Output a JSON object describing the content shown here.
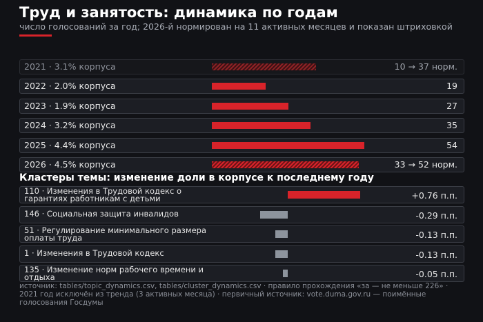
{
  "header": {
    "title": "Труд и занятость: динамика по годам",
    "subtitle": "число голосований за год; 2026-й нормирован на 11 активных месяцев и показан штриховкой"
  },
  "colors": {
    "background": "#111216",
    "accent": "#d8232a",
    "negative_bar": "#8d949d"
  },
  "chart_data": [
    {
      "type": "bar",
      "orientation": "horizontal",
      "title": "Труд и занятость: динамика по годам",
      "categories": [
        "2021",
        "2022",
        "2023",
        "2024",
        "2025",
        "2026"
      ],
      "row_labels": [
        "2021 · 3.1% корпуса",
        "2022 · 2.0% корпуса",
        "2023 · 1.9% корпуса",
        "2024 · 3.2% корпуса",
        "2025 · 4.4% корпуса",
        "2026 · 4.5% корпуса"
      ],
      "values": [
        37,
        19,
        27,
        35,
        54,
        52
      ],
      "raw_values": [
        10,
        19,
        27,
        35,
        54,
        33
      ],
      "value_labels": [
        "10 → 37 норм.",
        "19",
        "27",
        "35",
        "54",
        "33 → 52 норм."
      ],
      "hatched": [
        true,
        false,
        false,
        false,
        false,
        true
      ],
      "dimmed": [
        true,
        false,
        false,
        false,
        false,
        false
      ],
      "xlim": [
        0,
        54
      ]
    },
    {
      "type": "bar",
      "orientation": "horizontal",
      "title": "Кластеры темы: изменение доли в корпусе к последнему году",
      "categories": [
        "110 · Изменения в Трудовой кодекс о гарантиях работникам с детьми",
        "146 · Социальная защита инвалидов",
        "51 · Регулирование минимального размера оплаты труда",
        "1 · Изменения в Трудовой кодекс",
        "135 · Изменение норм рабочего времени и отдыха"
      ],
      "values": [
        0.76,
        -0.29,
        -0.13,
        -0.13,
        -0.05
      ],
      "value_labels": [
        "+0.76 п.п.",
        "-0.29 п.п.",
        "-0.13 п.п.",
        "-0.13 п.п.",
        "-0.05 п.п."
      ],
      "xlim": [
        -0.29,
        0.76
      ]
    }
  ],
  "source": "источник: tables/topic_dynamics.csv, tables/cluster_dynamics.csv · правило прохождения «за — не меньше 226» · 2021 год исключён из тренда (3 активных месяца) · первичный источник: vote.duma.gov.ru — поимённые голосования Госдумы"
}
